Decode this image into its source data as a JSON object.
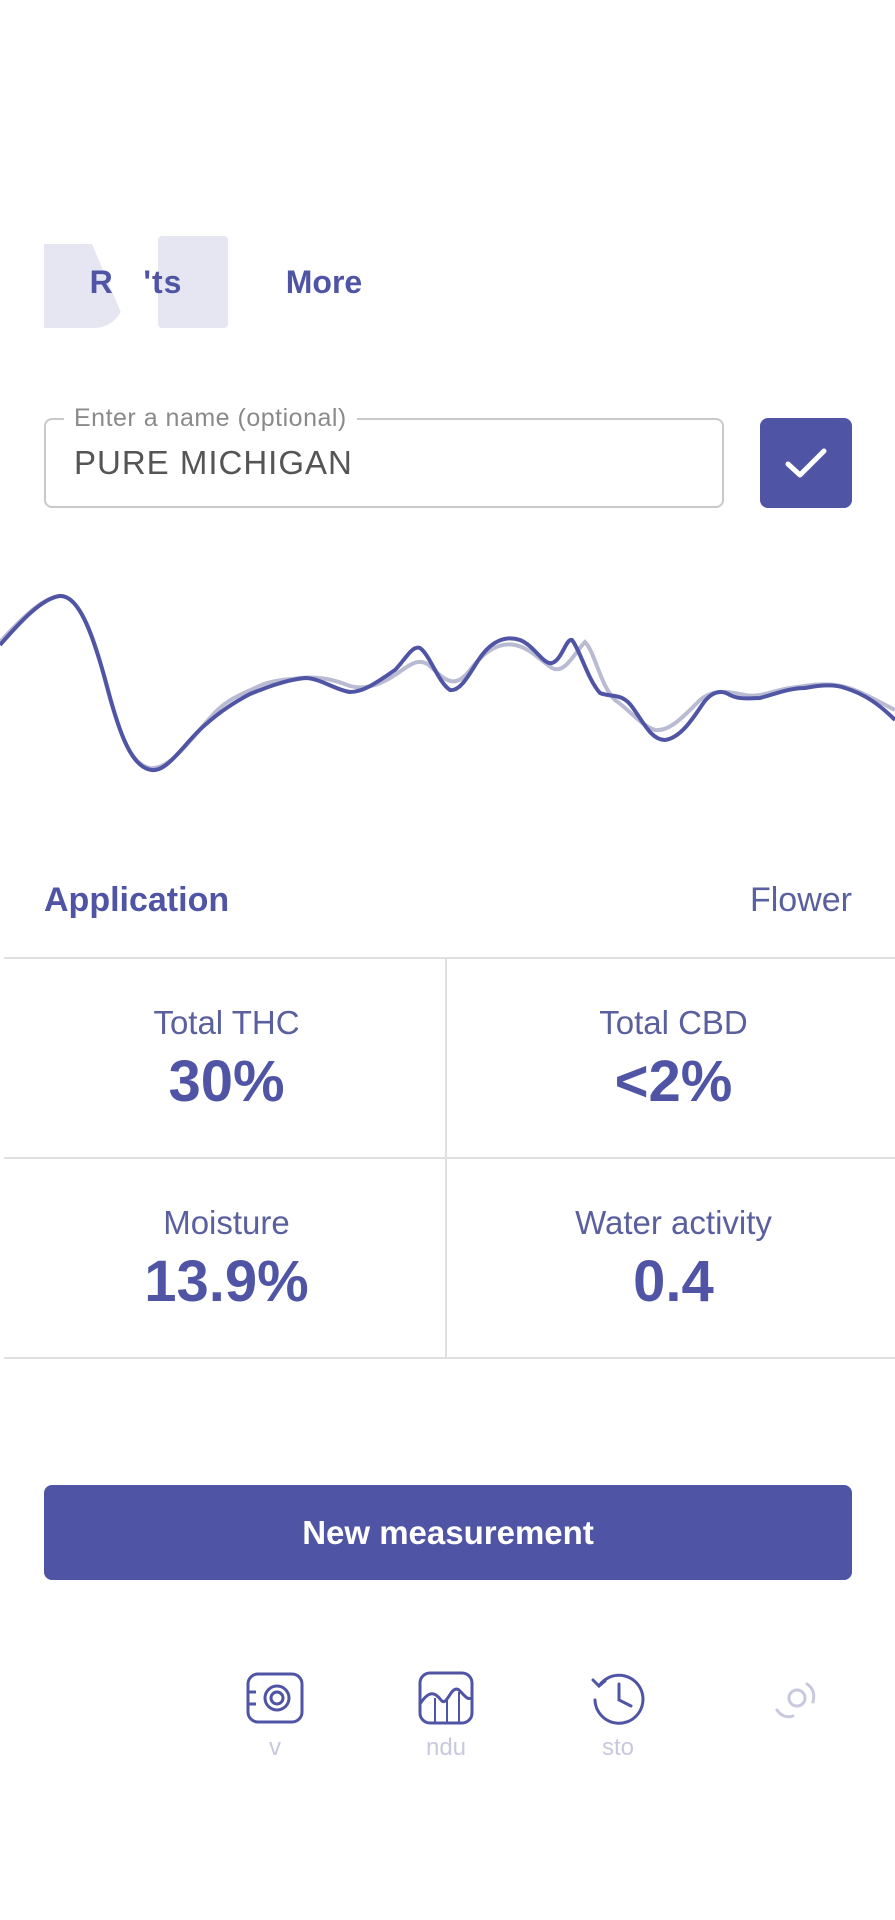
{
  "tabs": [
    {
      "label": "Results",
      "label_visible": "R   'ts",
      "active": true
    },
    {
      "label": "More",
      "active": false
    }
  ],
  "name_input": {
    "legend": "Enter a name (optional)",
    "value": "PURE MICHIGAN"
  },
  "application": {
    "label": "Application",
    "value": "Flower"
  },
  "metrics": [
    {
      "label": "Total THC",
      "value": "30%"
    },
    {
      "label": "Total CBD",
      "value": "<2%"
    },
    {
      "label": "Moisture",
      "value": "13.9%"
    },
    {
      "label": "Water activity",
      "value": "0.4"
    }
  ],
  "new_measurement_label": "New measurement",
  "nav": [
    {
      "icon": "camera-device-icon",
      "label": "v"
    },
    {
      "icon": "spectrum-chart-icon",
      "label": "ndu"
    },
    {
      "icon": "history-clock-icon",
      "label": "sto"
    },
    {
      "icon": "settings-icon",
      "label": ""
    }
  ],
  "colors": {
    "accent": "#4f55a4",
    "tab_active_bg": "#e6e6f2",
    "divider": "#e0e0e0",
    "spectrum_reference": "#b9bbd3"
  }
}
